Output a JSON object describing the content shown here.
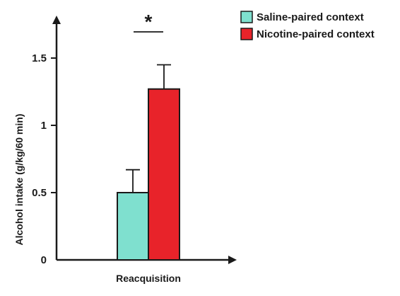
{
  "chart_data": {
    "type": "bar",
    "title": "",
    "xlabel": "",
    "ylabel": "Alcohol intake (g/kg/60 min)",
    "categories": [
      "Reacquisition"
    ],
    "ylim": [
      0,
      1.9
    ],
    "yticks": [
      0,
      0.5,
      1,
      1.5
    ],
    "ytick_labels": [
      "0",
      "0.5",
      "1",
      "1.5"
    ],
    "series": [
      {
        "name": "Saline-paired context",
        "values": [
          0.5
        ],
        "error": [
          0.17
        ],
        "color": "#7fe0cf"
      },
      {
        "name": "Nicotine-paired context",
        "values": [
          1.27
        ],
        "error": [
          0.18
        ],
        "color": "#e8232a"
      }
    ],
    "significance": {
      "label": "*",
      "between": [
        "Saline-paired context",
        "Nicotine-paired context"
      ]
    },
    "legend": {
      "position": "top-right"
    },
    "grid": false
  }
}
